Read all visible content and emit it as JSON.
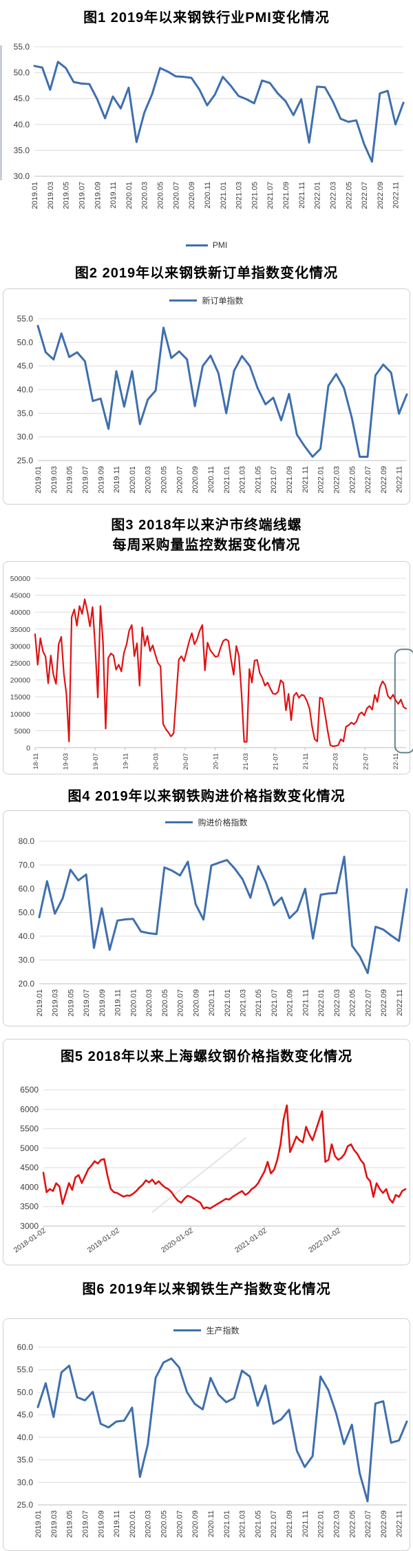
{
  "chart_data": [
    {
      "type": "line",
      "title": "图1  2019年以来钢铁行业PMI变化情况",
      "legend": "PMI",
      "legend_position": "bottom",
      "color": "#3e6fae",
      "grid": true,
      "ylim": [
        30,
        55
      ],
      "y_tick_labels": [
        "55.0",
        "50.0",
        "45.0",
        "40.0",
        "35.0",
        "30.0"
      ],
      "x_labels": [
        "2019.01",
        "2019.03",
        "2019.05",
        "2019.07",
        "2019.09",
        "2019.11",
        "2020.01",
        "2020.03",
        "2020.05",
        "2020.07",
        "2020.09",
        "2020.11",
        "2021.01",
        "2021.03",
        "2021.05",
        "2021.07",
        "2021.09",
        "2021.11",
        "2022.01",
        "2022.03",
        "2022.05",
        "2022.07",
        "2022.09",
        "2022.11"
      ],
      "values": [
        51.3,
        51.0,
        46.7,
        52.1,
        50.9,
        48.2,
        47.9,
        47.8,
        44.9,
        41.2,
        45.4,
        43.1,
        47.1,
        36.6,
        42.3,
        45.9,
        50.9,
        50.2,
        49.3,
        49.2,
        49.0,
        46.8,
        43.7,
        45.8,
        49.2,
        47.5,
        45.5,
        44.9,
        44.1,
        48.5,
        48.0,
        46.0,
        44.5,
        41.8,
        44.9,
        36.5,
        47.3,
        47.2,
        44.5,
        41.1,
        40.5,
        40.8,
        36.2,
        32.8,
        46.0,
        46.5,
        40.0,
        44.2
      ]
    },
    {
      "type": "line",
      "title": "图2  2019年以来钢铁新订单指数变化情况",
      "legend": "新订单指数",
      "legend_position": "top",
      "color": "#3e6fae",
      "grid": true,
      "ylim": [
        25,
        55
      ],
      "y_tick_labels": [
        "55.0",
        "50.0",
        "45.0",
        "40.0",
        "35.0",
        "30.0",
        "25.0"
      ],
      "x_labels": [
        "2019.01",
        "2019.03",
        "2019.05",
        "2019.07",
        "2019.09",
        "2019.11",
        "2020.01",
        "2020.03",
        "2020.05",
        "2020.07",
        "2020.09",
        "2020.11",
        "2021.01",
        "2021.03",
        "2021.05",
        "2021.07",
        "2021.09",
        "2021.11",
        "2022.01",
        "2022.03",
        "2022.05",
        "2022.07",
        "2022.09",
        "2022.11"
      ],
      "values": [
        53.5,
        47.9,
        46.4,
        51.9,
        46.9,
        47.9,
        46.0,
        37.6,
        38.1,
        31.7,
        43.9,
        36.4,
        43.9,
        32.7,
        37.9,
        39.8,
        53.1,
        46.7,
        48.1,
        46.4,
        36.5,
        45.0,
        47.2,
        43.5,
        35.0,
        44.0,
        47.1,
        45.0,
        40.3,
        36.9,
        38.3,
        33.5,
        39.1,
        30.5,
        28.0,
        25.8,
        27.5,
        40.8,
        43.3,
        40.3,
        34.0,
        25.8,
        25.8,
        43.0,
        45.3,
        43.6,
        34.9,
        39.0
      ]
    },
    {
      "type": "line",
      "title": "图3  2018年以来沪市终端线螺",
      "title_line2": "每周采购量监控数据变化情况",
      "legend": null,
      "color": "#e01212",
      "grid": true,
      "ylim": [
        0,
        50000
      ],
      "y_tick_labels": [
        "50000",
        "45000",
        "40000",
        "35000",
        "30000",
        "25000",
        "20000",
        "15000",
        "10000",
        "5000",
        "0"
      ],
      "x_labels": [
        "18-11",
        "19-03",
        "19-07",
        "19-11",
        "20-03",
        "20-07",
        "20-11",
        "21-03",
        "21-07",
        "21-11",
        "22-03",
        "22-07",
        "22-11"
      ],
      "annotation": {
        "shape": "rounded-rect",
        "x1_frac": 0.97,
        "x2_frac": 1.022,
        "y_top": 29000,
        "y_bottom": -1500,
        "color": "#64818f"
      },
      "values": [
        33500,
        24500,
        32300,
        28500,
        26800,
        19000,
        27200,
        21500,
        18800,
        30500,
        32700,
        21800,
        15800,
        1800,
        38500,
        40800,
        36000,
        41800,
        39500,
        43800,
        40300,
        35800,
        41500,
        29800,
        14800,
        41800,
        31000,
        5600,
        26500,
        27800,
        27200,
        23000,
        24500,
        22500,
        28000,
        30500,
        34500,
        36200,
        27000,
        30800,
        18300,
        35500,
        30000,
        33000,
        28500,
        30200,
        27500,
        25000,
        24000,
        7000,
        5500,
        4500,
        3300,
        4200,
        15000,
        26000,
        27000,
        25500,
        28500,
        31500,
        33800,
        30500,
        32000,
        34500,
        36200,
        22800,
        31000,
        28800,
        27800,
        26800,
        27000,
        29500,
        31500,
        32000,
        31500,
        26000,
        21500,
        30000,
        27000,
        16000,
        1700,
        1700,
        23200,
        19200,
        25700,
        25900,
        22000,
        20500,
        18300,
        19200,
        17500,
        16000,
        15800,
        16500,
        19900,
        19100,
        11000,
        15900,
        8100,
        15300,
        16200,
        14700,
        15600,
        15300,
        13800,
        11600,
        6200,
        2500,
        1800,
        14800,
        14400,
        9800,
        4900,
        700,
        400,
        500,
        700,
        2500,
        1800,
        6200,
        6600,
        7400,
        6900,
        7700,
        9800,
        10400,
        9500,
        11600,
        12300,
        11200,
        15600,
        13500,
        17900,
        19600,
        18500,
        15300,
        14400,
        15600,
        14000,
        12900,
        14200,
        12000,
        11500
      ]
    },
    {
      "type": "line",
      "title": "图4  2019年以来钢铁购进价格指数变化情况",
      "legend": "购进价格指数",
      "legend_position": "top",
      "color": "#3e6fae",
      "grid": true,
      "ylim": [
        20,
        80
      ],
      "y_tick_labels": [
        "80.0",
        "70.0",
        "60.0",
        "50.0",
        "40.0",
        "30.0",
        "20.0"
      ],
      "x_labels": [
        "2019.01",
        "2019.03",
        "2019.05",
        "2019.07",
        "2019.09",
        "2019.11",
        "2020.01",
        "2020.03",
        "2020.05",
        "2020.07",
        "2020.09",
        "2020.11",
        "2021.01",
        "2021.03",
        "2021.05",
        "2021.07",
        "2021.09",
        "2021.11",
        "2022.01",
        "2022.03",
        "2022.05",
        "2022.07",
        "2022.09",
        "2022.11"
      ],
      "values": [
        48.0,
        63.2,
        49.5,
        56.0,
        68.0,
        63.5,
        66.0,
        35.1,
        51.8,
        34.3,
        46.6,
        47.1,
        47.3,
        42.0,
        41.3,
        40.9,
        69.0,
        67.6,
        65.6,
        71.4,
        53.5,
        47.0,
        69.8,
        71.0,
        72.1,
        68.5,
        64.0,
        56.2,
        69.5,
        62.5,
        53.0,
        56.3,
        47.6,
        50.8,
        60.0,
        39.0,
        57.5,
        58.0,
        58.2,
        73.5,
        36.0,
        31.5,
        24.5,
        44.0,
        42.8,
        40.3,
        38.0,
        59.8
      ]
    },
    {
      "type": "line",
      "title": "图5  2018年以来上海螺纹钢价格指数变化情况",
      "legend": null,
      "color": "#e01212",
      "grid": true,
      "ylim": [
        3000,
        6500
      ],
      "y_tick_labels": [
        "6500",
        "6000",
        "5500",
        "5000",
        "4500",
        "4000",
        "3500",
        "3000"
      ],
      "x_labels": [
        "2018-01-02",
        "2019-01-02",
        "2020-01-02",
        "2021-01-02",
        "2022-01-02"
      ],
      "watermark": {
        "type": "diagonal-line"
      },
      "values": [
        4370,
        3870,
        3950,
        3900,
        4100,
        4020,
        3570,
        3840,
        4105,
        3930,
        4250,
        4310,
        4105,
        4280,
        4460,
        4550,
        4665,
        4605,
        4700,
        4720,
        4300,
        3960,
        3870,
        3850,
        3800,
        3755,
        3785,
        3780,
        3830,
        3900,
        3990,
        4065,
        4176,
        4120,
        4194,
        4080,
        4150,
        4060,
        3990,
        3950,
        3870,
        3750,
        3650,
        3600,
        3700,
        3780,
        3750,
        3700,
        3650,
        3600,
        3450,
        3480,
        3450,
        3500,
        3550,
        3600,
        3650,
        3700,
        3680,
        3750,
        3800,
        3850,
        3900,
        3800,
        3850,
        3950,
        4000,
        4100,
        4250,
        4400,
        4650,
        4350,
        4450,
        4700,
        5100,
        5750,
        6100,
        4900,
        5100,
        5300,
        5200,
        5150,
        5550,
        5350,
        5200,
        5450,
        5700,
        5950,
        4650,
        4700,
        5100,
        4800,
        4700,
        4750,
        4850,
        5050,
        5100,
        4950,
        4850,
        4700,
        4600,
        4250,
        4150,
        3750,
        4100,
        3950,
        3850,
        3950,
        3700,
        3600,
        3800,
        3750,
        3900,
        3950
      ]
    },
    {
      "type": "line",
      "title": "图6  2019年以来钢铁生产指数变化情况",
      "legend": "生产指数",
      "legend_position": "top",
      "color": "#3e6fae",
      "grid": true,
      "ylim": [
        25,
        60
      ],
      "y_tick_labels": [
        "60.0",
        "55.0",
        "50.0",
        "45.0",
        "40.0",
        "35.0",
        "30.0",
        "25.0"
      ],
      "x_labels": [
        "2019.01",
        "2019.03",
        "2019.05",
        "2019.07",
        "2019.09",
        "2019.11",
        "2020.01",
        "2020.03",
        "2020.05",
        "2020.07",
        "2020.09",
        "2020.11",
        "2021.01",
        "2021.03",
        "2021.05",
        "2021.07",
        "2021.09",
        "2021.11",
        "2022.01",
        "2022.03",
        "2022.05",
        "2022.07",
        "2022.09",
        "2022.11"
      ],
      "values": [
        46.7,
        52.0,
        44.5,
        54.4,
        55.9,
        48.9,
        48.2,
        50.1,
        43.0,
        42.2,
        43.5,
        43.7,
        46.6,
        31.2,
        38.4,
        53.2,
        56.6,
        57.5,
        55.5,
        50.0,
        47.4,
        46.2,
        53.2,
        49.5,
        47.8,
        48.7,
        54.8,
        53.5,
        47.0,
        51.5,
        43.0,
        44.0,
        46.1,
        37.0,
        33.4,
        35.8,
        53.5,
        50.5,
        45.3,
        38.5,
        42.8,
        32.0,
        25.8,
        47.5,
        48.0,
        38.8,
        39.3,
        43.5
      ]
    }
  ]
}
